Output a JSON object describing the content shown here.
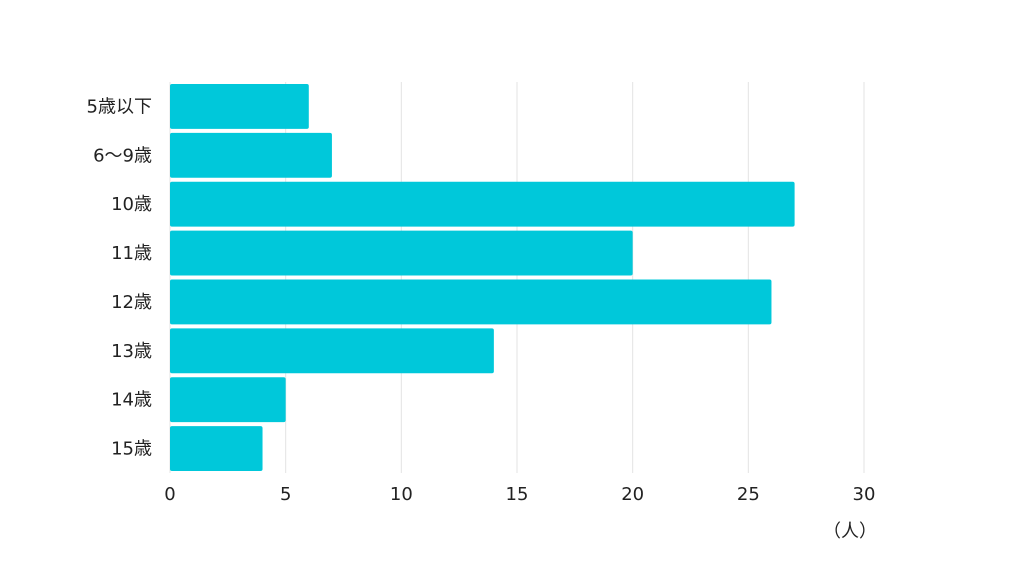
{
  "chart_data": {
    "type": "bar",
    "orientation": "horizontal",
    "categories": [
      "5歳以下",
      "6〜9歳",
      "10歳",
      "11歳",
      "12歳",
      "13歳",
      "14歳",
      "15歳"
    ],
    "values": [
      6,
      7,
      27,
      20,
      26,
      14,
      5,
      4
    ],
    "xticks": [
      "0",
      "5",
      "10",
      "15",
      "20",
      "25",
      "30"
    ],
    "xlim": [
      0,
      30
    ],
    "unit_label": "（人）",
    "grid": true,
    "bar_color": "#00C8DA"
  }
}
